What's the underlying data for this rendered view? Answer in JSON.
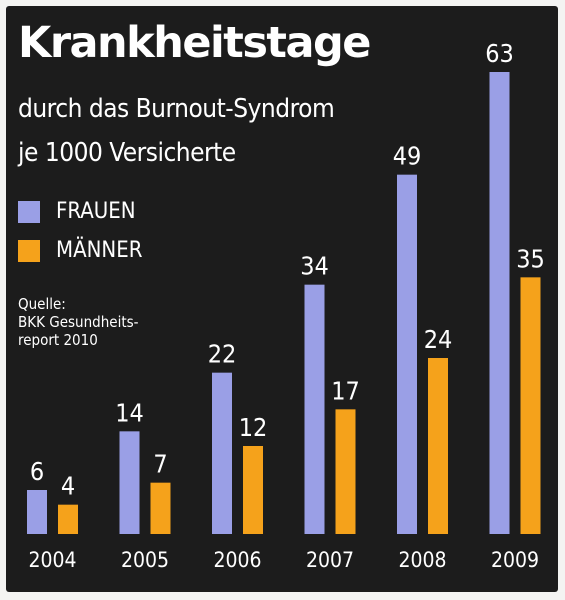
{
  "colors": {
    "background": "#1c1c1c",
    "frauen": "#9a9fe6",
    "maenner": "#f5a21b",
    "text": "#ffffff"
  },
  "legend": {
    "frauen": "FRAUEN",
    "maenner": "MÄNNER"
  },
  "source": {
    "line1": "Quelle:",
    "line2": "BKK Gesundheits-",
    "line3": "report 2010"
  },
  "chart_data": {
    "type": "bar",
    "title": "Krankheitstage",
    "subtitle_line1": "durch das Burnout-Syndrom",
    "subtitle_line2": "je 1000 Versicherte",
    "categories": [
      "2004",
      "2005",
      "2006",
      "2007",
      "2008",
      "2009"
    ],
    "series": [
      {
        "name": "FRAUEN",
        "values": [
          6,
          14,
          22,
          34,
          49,
          63
        ],
        "color": "#9a9fe6"
      },
      {
        "name": "MÄNNER",
        "values": [
          4,
          7,
          12,
          17,
          24,
          35
        ],
        "color": "#f5a21b"
      }
    ],
    "ylim": [
      0,
      63
    ],
    "value_labels": true,
    "grid": false,
    "legend_position": "top-left"
  }
}
